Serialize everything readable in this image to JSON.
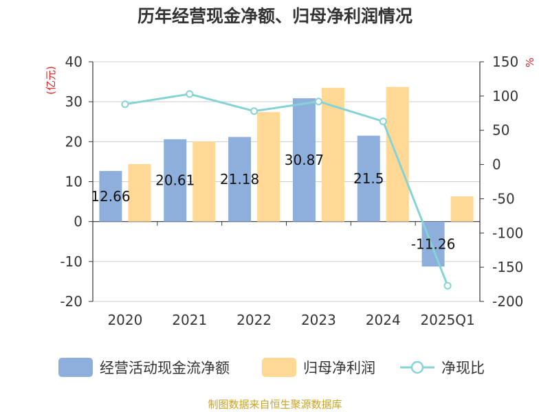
{
  "chart_data": {
    "type": "bar",
    "title": "历年经营现金净额、归母净利润情况",
    "categories": [
      "2020",
      "2021",
      "2022",
      "2023",
      "2024",
      "2025Q1"
    ],
    "series": [
      {
        "name": "经营活动现金流净额",
        "type": "bar",
        "axis": "left",
        "color": "#8eaedb",
        "values": [
          12.66,
          20.61,
          21.18,
          30.87,
          21.5,
          -11.26
        ],
        "labels": [
          "12.66",
          "20.61",
          "21.18",
          "30.87",
          "21.5",
          "-11.26"
        ]
      },
      {
        "name": "归母净利润",
        "type": "bar",
        "axis": "left",
        "color": "#ffd896",
        "values": [
          14.4,
          20.0,
          27.4,
          33.5,
          33.7,
          6.3
        ]
      },
      {
        "name": "净现比",
        "type": "line",
        "axis": "right",
        "color": "#86d3d6",
        "values": [
          88,
          103,
          78,
          92,
          63,
          -177
        ]
      }
    ],
    "y_left": {
      "unit": "(亿元)",
      "ylim": [
        -20,
        40
      ],
      "ticks": [
        -20,
        -10,
        0,
        10,
        20,
        30,
        40
      ]
    },
    "y_right": {
      "unit": "%",
      "ylim": [
        -200,
        150
      ],
      "ticks": [
        -200,
        -150,
        -100,
        -50,
        0,
        50,
        100,
        150
      ]
    },
    "grid": true,
    "legend": "bottom"
  },
  "footer": {
    "source": "制图数据来自恒生聚源数据库"
  }
}
